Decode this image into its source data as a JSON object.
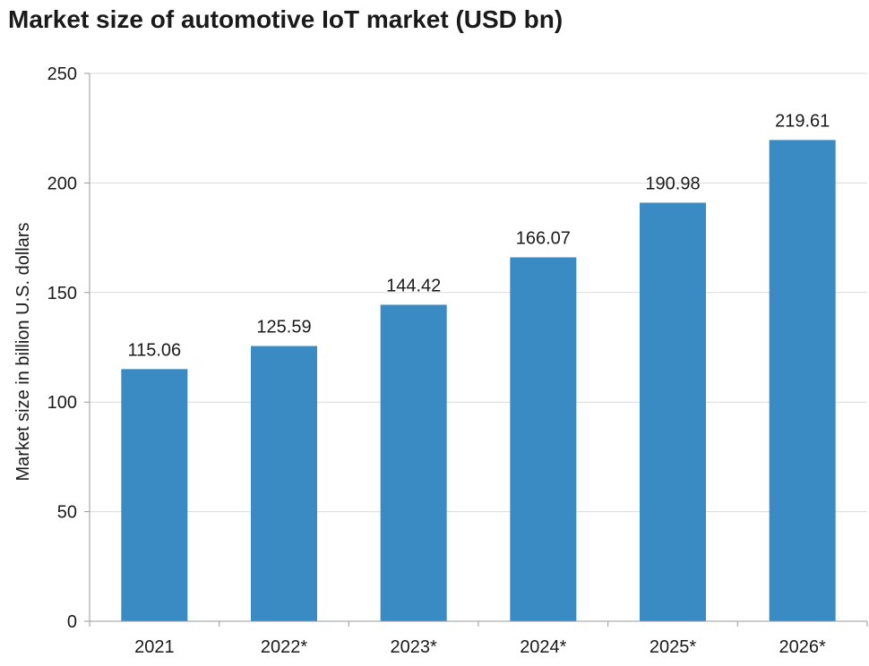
{
  "chart_data": {
    "type": "bar",
    "title": "Market size of automotive IoT market (USD bn)",
    "xlabel": "",
    "ylabel": "Market size in billion U.S. dollars",
    "categories": [
      "2021",
      "2022*",
      "2023*",
      "2024*",
      "2025*",
      "2026*"
    ],
    "values": [
      115.06,
      125.59,
      144.42,
      166.07,
      190.98,
      219.61
    ],
    "value_labels": [
      "115.06",
      "125.59",
      "144.42",
      "166.07",
      "190.98",
      "219.61"
    ],
    "ylim": [
      0,
      250
    ],
    "yticks": [
      0,
      50,
      100,
      150,
      200,
      250
    ],
    "grid": true,
    "bar_color": "#3a8bc4",
    "grid_color": "#d9d9d9",
    "axis_color": "#9a9a9a"
  }
}
